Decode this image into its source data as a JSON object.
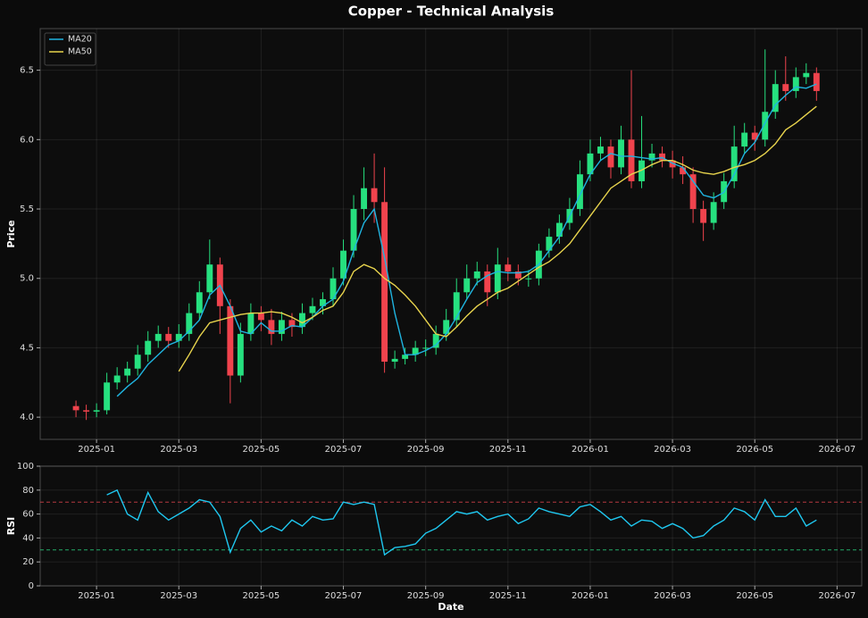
{
  "chart_data": [
    {
      "type": "candlestick",
      "title": "Copper - Technical Analysis",
      "ylabel": "Price",
      "x": [
        -0.5,
        -0.25,
        0,
        0.25,
        0.5,
        0.75,
        1,
        1.25,
        1.5,
        1.75,
        2,
        2.25,
        2.5,
        2.75,
        3,
        3.25,
        3.5,
        3.75,
        4,
        4.25,
        4.5,
        4.75,
        5,
        5.25,
        5.5,
        5.75,
        6,
        6.25,
        6.5,
        6.75,
        7,
        7.25,
        7.5,
        7.75,
        8,
        8.25,
        8.5,
        8.75,
        9,
        9.25,
        9.5,
        9.75,
        10,
        10.25,
        10.5,
        10.75,
        11,
        11.25,
        11.5,
        11.75,
        12,
        12.25,
        12.5,
        12.75,
        13,
        13.25,
        13.5,
        13.75,
        14,
        14.25,
        14.5,
        14.75,
        15,
        15.25,
        15.5,
        15.75,
        16,
        16.25,
        16.5,
        16.75,
        17,
        17.25,
        17.5
      ],
      "xlim": [
        -1.37,
        18.6
      ],
      "xticks": [
        {
          "value": 0,
          "label": "2025-01"
        },
        {
          "value": 2,
          "label": "2025-03"
        },
        {
          "value": 4,
          "label": "2025-05"
        },
        {
          "value": 6,
          "label": "2025-07"
        },
        {
          "value": 8,
          "label": "2025-09"
        },
        {
          "value": 10,
          "label": "2025-11"
        },
        {
          "value": 12,
          "label": "2026-01"
        },
        {
          "value": 14,
          "label": "2026-03"
        },
        {
          "value": 16,
          "label": "2026-05"
        },
        {
          "value": 18,
          "label": "2026-07"
        }
      ],
      "ylim": [
        3.84,
        6.8
      ],
      "yticks": [
        {
          "value": 4,
          "label": "4.0"
        },
        4.5,
        {
          "value": 5,
          "label": "5.0"
        },
        5.5,
        {
          "value": 6,
          "label": "6.0"
        },
        6.5
      ],
      "grid": true,
      "legend": "upper left",
      "up_color": "#26e07f",
      "down_color": "#f0434d",
      "candles": {
        "open": [
          4.08,
          4.05,
          4.04,
          4.05,
          4.25,
          4.3,
          4.35,
          4.45,
          4.55,
          4.6,
          4.55,
          4.6,
          4.75,
          4.9,
          5.1,
          4.8,
          4.3,
          4.6,
          4.75,
          4.7,
          4.6,
          4.7,
          4.65,
          4.75,
          4.8,
          4.85,
          5.0,
          5.2,
          5.5,
          5.65,
          5.55,
          4.4,
          4.42,
          4.45,
          4.5,
          4.5,
          4.6,
          4.7,
          4.9,
          5.0,
          5.05,
          4.9,
          5.1,
          5.05,
          5.0,
          5.0,
          5.2,
          5.3,
          5.4,
          5.5,
          5.75,
          5.9,
          5.95,
          5.8,
          6.0,
          5.7,
          5.85,
          5.9,
          5.85,
          5.8,
          5.75,
          5.5,
          5.4,
          5.55,
          5.7,
          5.95,
          6.05,
          6.0,
          6.2,
          6.4,
          6.35,
          6.45,
          6.48
        ],
        "high": [
          4.12,
          4.09,
          4.1,
          4.32,
          4.36,
          4.4,
          4.52,
          4.62,
          4.66,
          4.65,
          4.67,
          4.82,
          4.98,
          5.28,
          5.15,
          4.85,
          4.68,
          4.82,
          4.8,
          4.78,
          4.76,
          4.75,
          4.82,
          4.86,
          4.9,
          5.08,
          5.28,
          5.6,
          5.8,
          5.9,
          5.8,
          4.48,
          4.5,
          4.55,
          4.56,
          4.66,
          4.78,
          5.0,
          5.1,
          5.12,
          5.1,
          5.22,
          5.15,
          5.1,
          5.06,
          5.25,
          5.36,
          5.46,
          5.58,
          5.85,
          6.0,
          6.02,
          6.0,
          6.1,
          6.5,
          6.17,
          5.97,
          5.95,
          5.92,
          5.88,
          5.8,
          5.56,
          5.62,
          5.76,
          6.1,
          6.12,
          6.1,
          6.65,
          6.5,
          6.6,
          6.52,
          6.55,
          6.52
        ],
        "low": [
          4.0,
          3.98,
          4.0,
          4.02,
          4.2,
          4.25,
          4.3,
          4.4,
          4.5,
          4.5,
          4.5,
          4.55,
          4.7,
          4.85,
          4.6,
          4.1,
          4.25,
          4.55,
          4.62,
          4.52,
          4.55,
          4.58,
          4.6,
          4.7,
          4.74,
          4.8,
          4.95,
          5.15,
          5.42,
          5.4,
          4.32,
          4.35,
          4.38,
          4.4,
          4.44,
          4.45,
          4.55,
          4.65,
          4.85,
          4.95,
          4.8,
          4.85,
          4.98,
          4.95,
          4.94,
          4.95,
          5.15,
          5.25,
          5.35,
          5.45,
          5.7,
          5.85,
          5.72,
          5.75,
          5.65,
          5.65,
          5.8,
          5.8,
          5.72,
          5.68,
          5.4,
          5.27,
          5.35,
          5.5,
          5.65,
          5.9,
          5.92,
          5.95,
          6.15,
          6.28,
          6.3,
          6.4,
          6.28
        ],
        "close": [
          4.05,
          4.04,
          4.05,
          4.25,
          4.3,
          4.35,
          4.45,
          4.55,
          4.6,
          4.55,
          4.6,
          4.75,
          4.9,
          5.1,
          4.8,
          4.3,
          4.6,
          4.75,
          4.7,
          4.6,
          4.7,
          4.65,
          4.75,
          4.8,
          4.85,
          5.0,
          5.2,
          5.5,
          5.65,
          5.55,
          4.4,
          4.42,
          4.45,
          4.5,
          4.5,
          4.6,
          4.7,
          4.9,
          5.0,
          5.05,
          4.9,
          5.1,
          5.05,
          5.0,
          5.0,
          5.2,
          5.3,
          5.4,
          5.5,
          5.75,
          5.9,
          5.95,
          5.8,
          6.0,
          5.7,
          5.85,
          5.9,
          5.85,
          5.8,
          5.75,
          5.5,
          5.4,
          5.55,
          5.7,
          5.95,
          6.05,
          6.0,
          6.2,
          6.4,
          6.35,
          6.45,
          6.48,
          6.35
        ]
      },
      "series": [
        {
          "name": "MA20",
          "color": "#1fb4e0",
          "values": [
            null,
            null,
            null,
            null,
            4.15,
            4.22,
            4.28,
            4.38,
            4.45,
            4.52,
            4.55,
            4.62,
            4.7,
            4.88,
            4.95,
            4.8,
            4.62,
            4.6,
            4.68,
            4.62,
            4.62,
            4.66,
            4.65,
            4.72,
            4.8,
            4.85,
            4.98,
            5.2,
            5.4,
            5.5,
            5.15,
            4.75,
            4.45,
            4.45,
            4.48,
            4.52,
            4.6,
            4.72,
            4.85,
            4.97,
            5.02,
            5.05,
            5.04,
            5.04,
            5.05,
            5.1,
            5.2,
            5.3,
            5.45,
            5.6,
            5.75,
            5.85,
            5.9,
            5.88,
            5.88,
            5.87,
            5.86,
            5.87,
            5.83,
            5.8,
            5.7,
            5.6,
            5.58,
            5.62,
            5.75,
            5.9,
            5.98,
            6.12,
            6.25,
            6.32,
            6.38,
            6.37,
            6.4
          ]
        },
        {
          "name": "MA50",
          "color": "#e8d44d",
          "values": [
            null,
            null,
            null,
            null,
            null,
            null,
            null,
            null,
            null,
            null,
            4.33,
            4.45,
            4.58,
            4.68,
            4.7,
            4.72,
            4.74,
            4.75,
            4.75,
            4.76,
            4.75,
            4.72,
            4.68,
            4.72,
            4.77,
            4.8,
            4.9,
            5.05,
            5.1,
            5.07,
            5.0,
            4.95,
            4.88,
            4.8,
            4.7,
            4.6,
            4.58,
            4.65,
            4.73,
            4.8,
            4.85,
            4.9,
            4.93,
            4.98,
            5.03,
            5.08,
            5.12,
            5.18,
            5.25,
            5.35,
            5.45,
            5.55,
            5.65,
            5.7,
            5.75,
            5.78,
            5.82,
            5.85,
            5.85,
            5.82,
            5.78,
            5.76,
            5.75,
            5.77,
            5.8,
            5.82,
            5.85,
            5.9,
            5.97,
            6.07,
            6.12,
            6.18,
            6.24
          ]
        }
      ]
    },
    {
      "type": "line",
      "ylabel": "RSI",
      "xlabel": "Date",
      "x": [
        -0.5,
        -0.25,
        0,
        0.25,
        0.5,
        0.75,
        1,
        1.25,
        1.5,
        1.75,
        2,
        2.25,
        2.5,
        2.75,
        3,
        3.25,
        3.5,
        3.75,
        4,
        4.25,
        4.5,
        4.75,
        5,
        5.25,
        5.5,
        5.75,
        6,
        6.25,
        6.5,
        6.75,
        7,
        7.25,
        7.5,
        7.75,
        8,
        8.25,
        8.5,
        8.75,
        9,
        9.25,
        9.5,
        9.75,
        10,
        10.25,
        10.5,
        10.75,
        11,
        11.25,
        11.5,
        11.75,
        12,
        12.25,
        12.5,
        12.75,
        13,
        13.25,
        13.5,
        13.75,
        14,
        14.25,
        14.5,
        14.75,
        15,
        15.25,
        15.5,
        15.75,
        16,
        16.25,
        16.5,
        16.75,
        17,
        17.25,
        17.5
      ],
      "xlim": [
        -1.37,
        18.6
      ],
      "xticks": [
        {
          "value": 0,
          "label": "2025-01"
        },
        {
          "value": 2,
          "label": "2025-03"
        },
        {
          "value": 4,
          "label": "2025-05"
        },
        {
          "value": 6,
          "label": "2025-07"
        },
        {
          "value": 8,
          "label": "2025-09"
        },
        {
          "value": 10,
          "label": "2025-11"
        },
        {
          "value": 12,
          "label": "2026-01"
        },
        {
          "value": 14,
          "label": "2026-03"
        },
        {
          "value": 16,
          "label": "2026-05"
        },
        {
          "value": 18,
          "label": "2026-07"
        }
      ],
      "ylim": [
        0,
        100
      ],
      "yticks": [
        0,
        20,
        40,
        60,
        80,
        100
      ],
      "grid": true,
      "hlines": [
        {
          "value": 70,
          "color": "#e0464e"
        },
        {
          "value": 30,
          "color": "#2bd47f"
        }
      ],
      "series": [
        {
          "color": "#1fc7ef",
          "values": [
            null,
            null,
            null,
            76,
            80,
            60,
            55,
            78,
            62,
            55,
            60,
            65,
            72,
            70,
            58,
            28,
            48,
            55,
            45,
            50,
            46,
            55,
            50,
            58,
            55,
            56,
            70,
            68,
            70,
            68,
            26,
            32,
            33,
            35,
            44,
            48,
            55,
            62,
            60,
            62,
            55,
            58,
            60,
            52,
            56,
            65,
            62,
            60,
            58,
            66,
            68,
            62,
            55,
            58,
            50,
            55,
            54,
            48,
            52,
            48,
            40,
            42,
            50,
            55,
            65,
            62,
            55,
            72,
            58,
            58,
            65,
            50,
            55
          ]
        }
      ]
    }
  ]
}
